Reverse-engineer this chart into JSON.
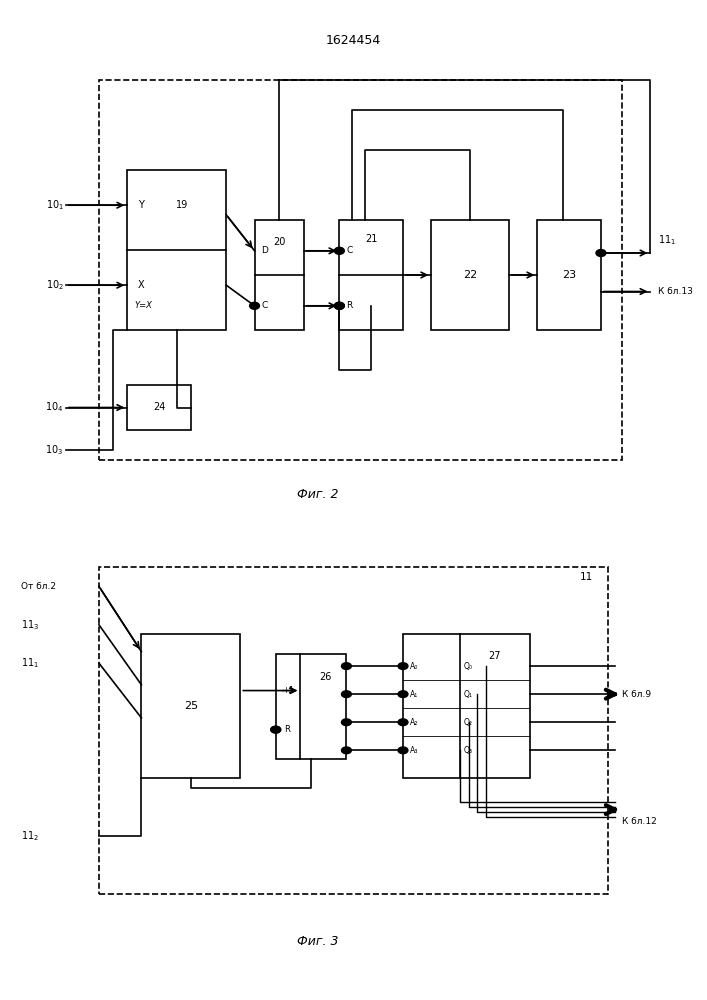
{
  "title": "1624454",
  "fig1_label": "Фиг. 2",
  "fig2_label": "Фиг. 3",
  "bg_color": "#ffffff"
}
